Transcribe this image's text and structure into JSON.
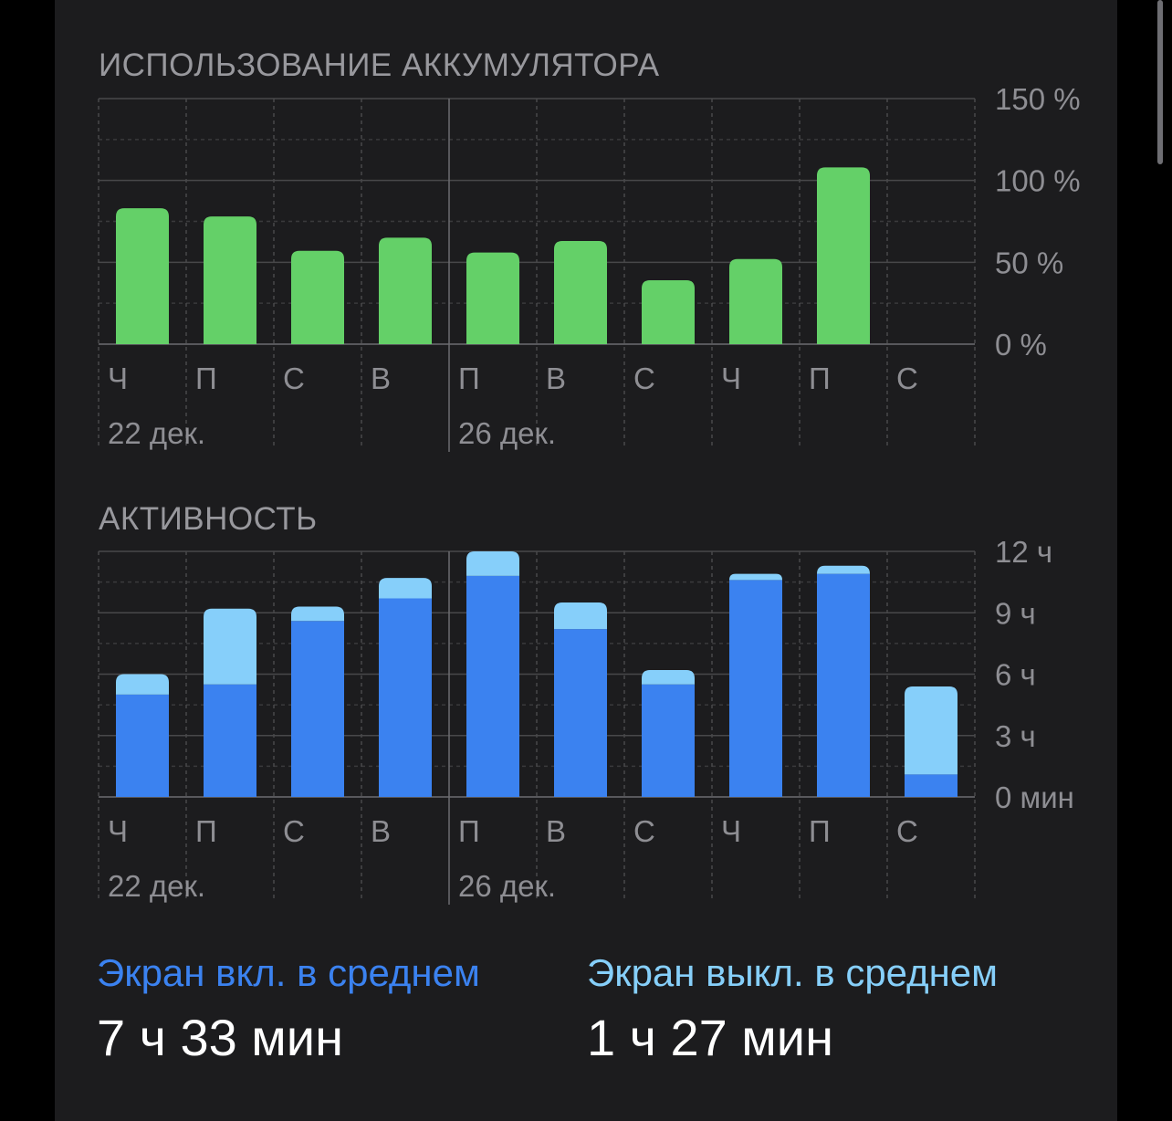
{
  "battery": {
    "title": "ИСПОЛЬЗОВАНИЕ АККУМУЛЯТОРА",
    "y_ticks": [
      "0 %",
      "50 %",
      "100 %",
      "150 %"
    ],
    "day_labels": [
      "Ч",
      "П",
      "С",
      "В",
      "П",
      "В",
      "С",
      "Ч",
      "П",
      "С"
    ],
    "date_labels": [
      "22 дек.",
      "26 дек."
    ]
  },
  "activity": {
    "title": "АКТИВНОСТЬ",
    "y_ticks": [
      "0 мин",
      "3 ч",
      "6 ч",
      "9 ч",
      "12 ч"
    ],
    "day_labels": [
      "Ч",
      "П",
      "С",
      "В",
      "П",
      "В",
      "С",
      "Ч",
      "П",
      "С"
    ],
    "date_labels": [
      "22 дек.",
      "26 дек."
    ]
  },
  "summary": {
    "screen_on_label": "Экран вкл. в среднем",
    "screen_on_value": "7 ч 33 мин",
    "screen_off_label": "Экран выкл. в среднем",
    "screen_off_value": "1 ч 27 мин"
  },
  "colors": {
    "battery_bar": "#64d068",
    "screen_on": "#3b82f0",
    "screen_off": "#86cffa",
    "background": "#1c1c1e"
  },
  "chart_data": [
    {
      "type": "bar",
      "title": "ИСПОЛЬЗОВАНИЕ АККУМУЛЯТОРА",
      "categories": [
        "Ч",
        "П",
        "С",
        "В",
        "П",
        "В",
        "С",
        "Ч",
        "П",
        "С"
      ],
      "values": [
        83,
        78,
        57,
        65,
        56,
        63,
        39,
        52,
        108,
        0
      ],
      "ylim": [
        0,
        150
      ],
      "y_ticks": [
        0,
        50,
        100,
        150
      ],
      "y_unit": "%",
      "grid": true
    },
    {
      "type": "bar",
      "stacked": true,
      "title": "АКТИВНОСТЬ",
      "categories": [
        "Ч",
        "П",
        "С",
        "В",
        "П",
        "В",
        "С",
        "Ч",
        "П",
        "С"
      ],
      "series": [
        {
          "name": "Экран вкл. в среднем",
          "values": [
            5.0,
            5.5,
            8.6,
            9.7,
            10.8,
            8.2,
            5.5,
            10.6,
            10.9,
            1.1
          ]
        },
        {
          "name": "Экран выкл. в среднем",
          "values": [
            1.0,
            3.7,
            0.7,
            1.0,
            1.2,
            1.3,
            0.7,
            0.3,
            0.4,
            4.3
          ]
        }
      ],
      "ylim": [
        0,
        12
      ],
      "y_ticks": [
        0,
        3,
        6,
        9,
        12
      ],
      "y_unit": "ч",
      "grid": true
    }
  ]
}
